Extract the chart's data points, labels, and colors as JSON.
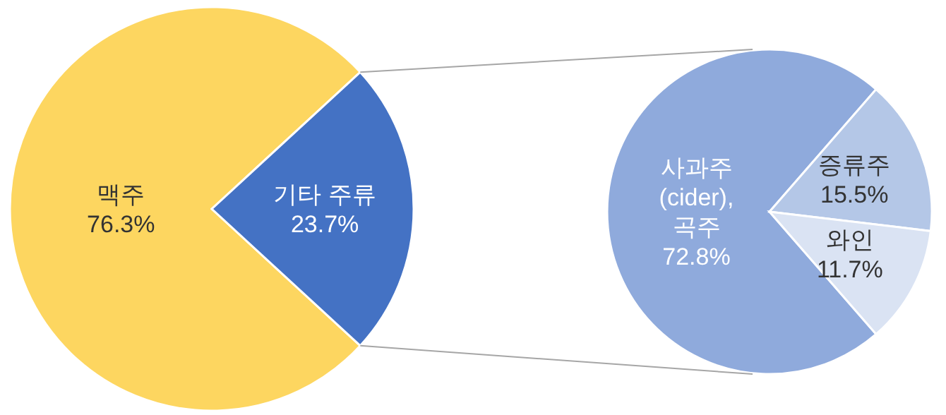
{
  "chart_data": [
    {
      "type": "pie",
      "categories": [
        "맥주",
        "기타 주류"
      ],
      "values": [
        76.3,
        23.7
      ],
      "colors": [
        "#fdd660",
        "#4472c4"
      ],
      "value_labels": [
        "76.3%",
        "23.7%"
      ]
    },
    {
      "type": "pie",
      "categories": [
        "사과주 (cider), 곡주",
        "증류주",
        "와인"
      ],
      "values": [
        72.8,
        15.5,
        11.7
      ],
      "colors": [
        "#8faadc",
        "#b4c7e7",
        "#dae3f3"
      ],
      "value_labels": [
        "72.8%",
        "15.5%",
        "11.7%"
      ]
    }
  ]
}
